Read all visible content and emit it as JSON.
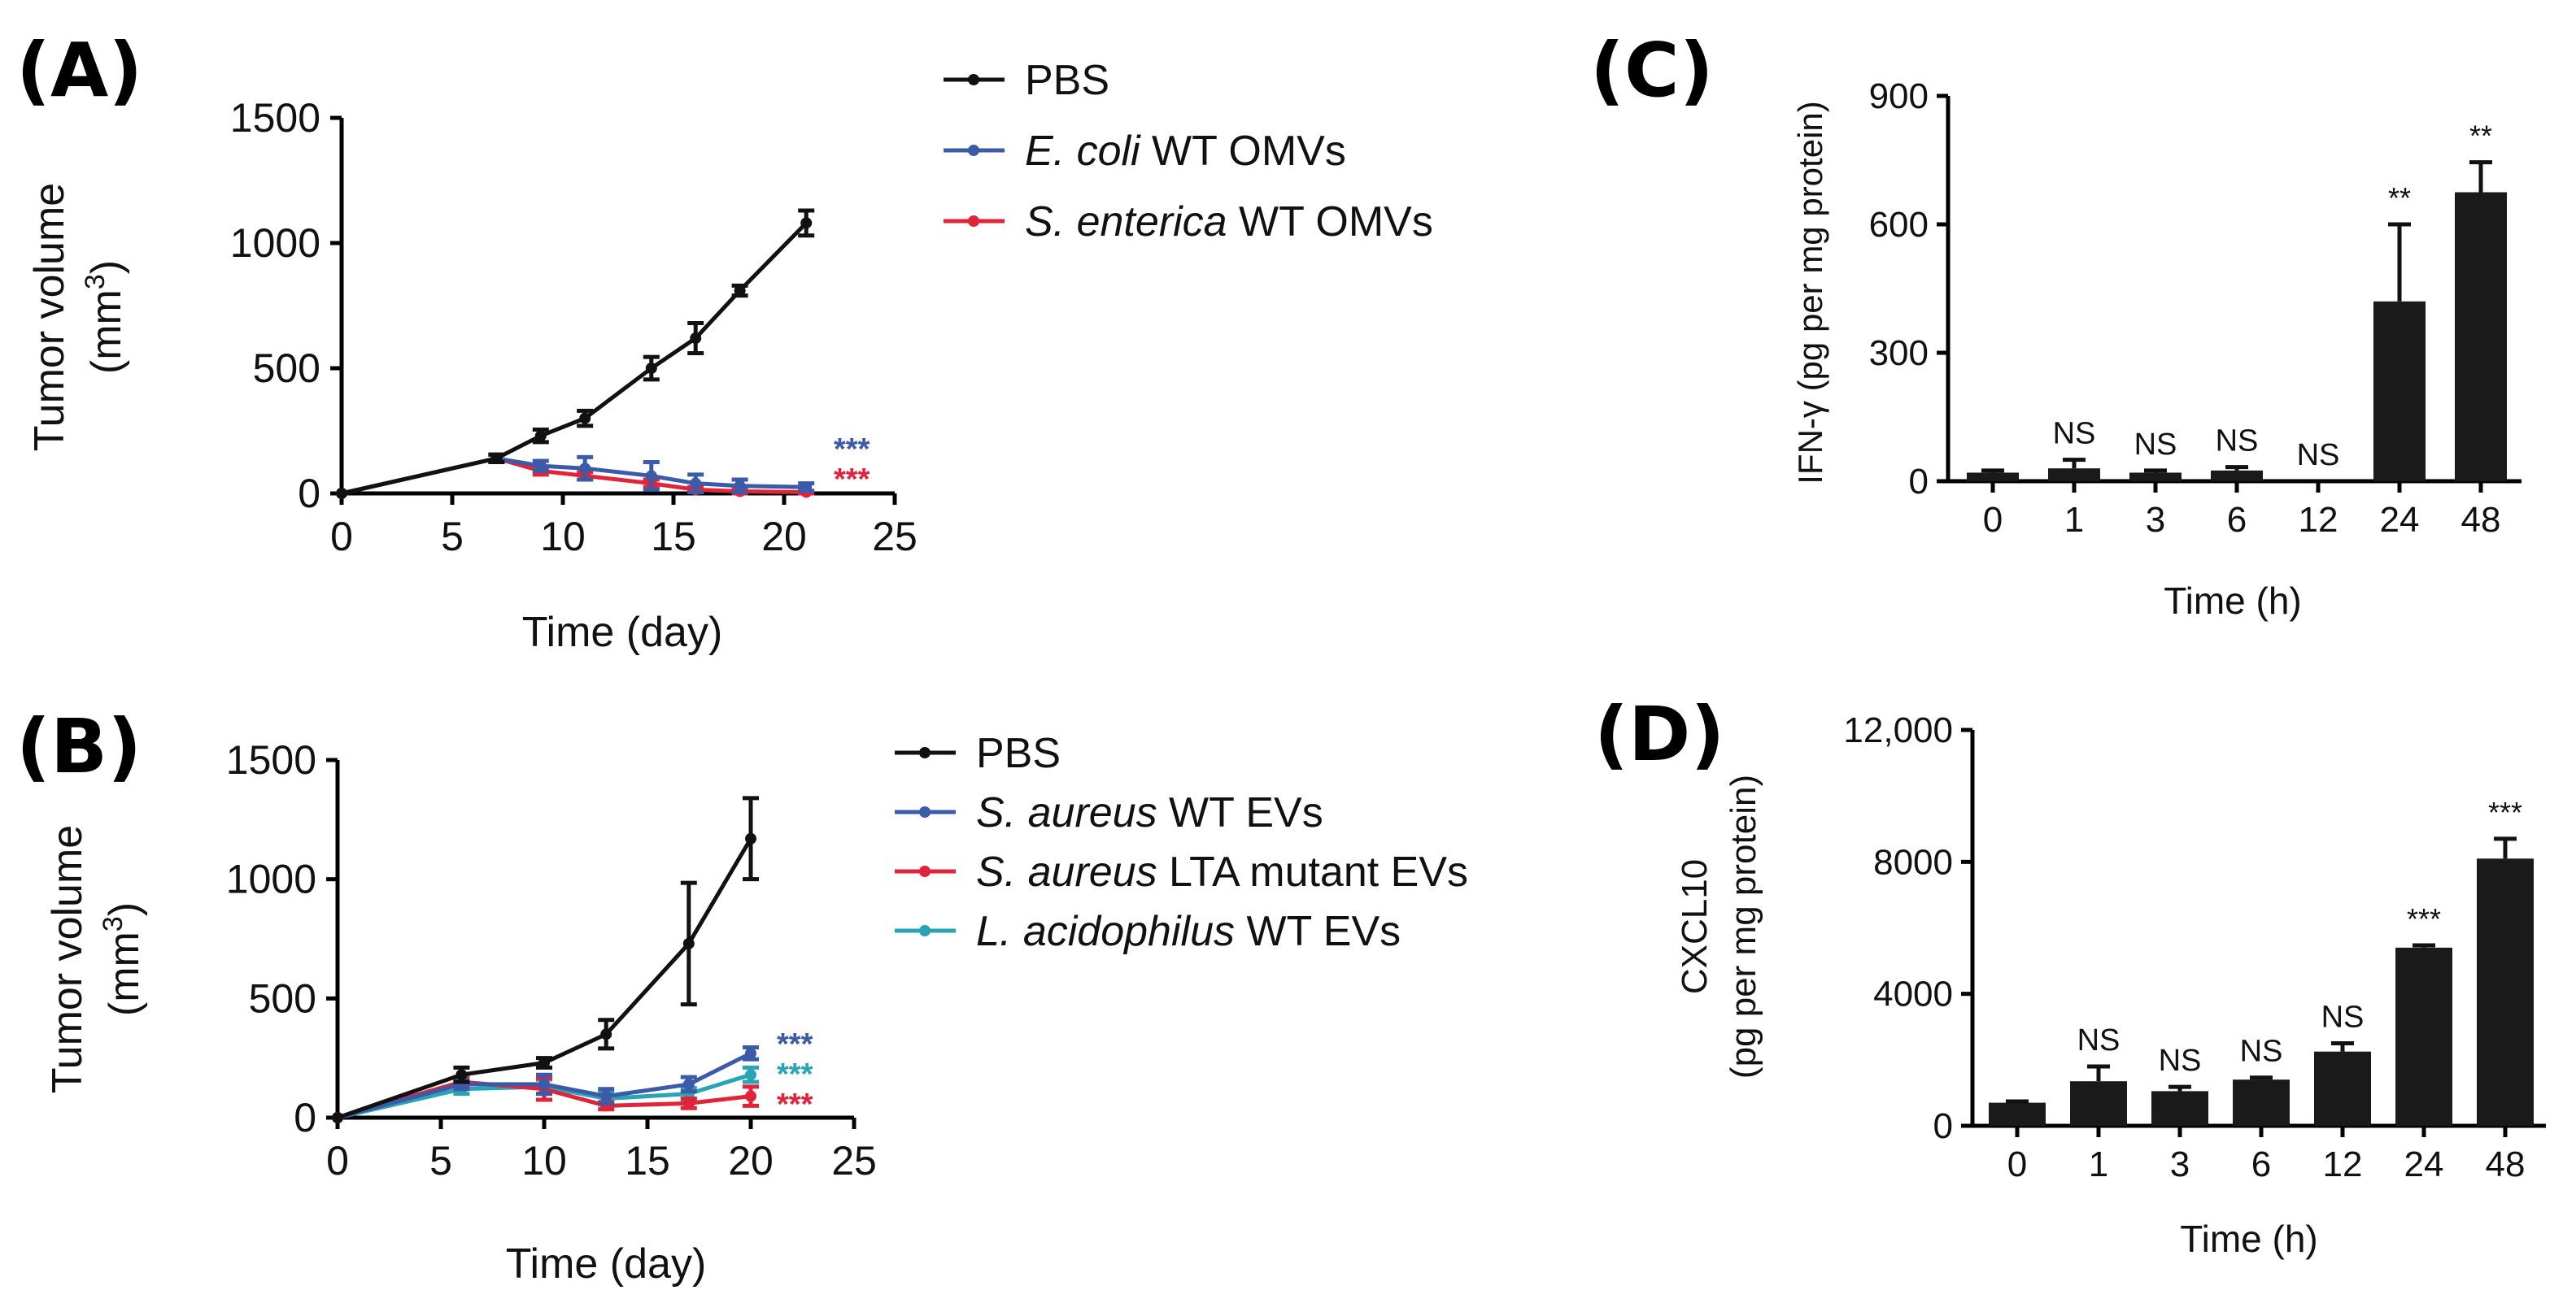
{
  "colors": {
    "black": "#111111",
    "blue": "#3b5aa8",
    "red": "#e0243a",
    "teal": "#2aa3b5"
  },
  "chart_data": [
    {
      "id": "A",
      "panel_label": "(A)",
      "type": "line",
      "xlabel": "Time (day)",
      "ylabel_line1": "Tumor volume",
      "ylabel_line2": "(mm",
      "ylabel_sup": "3",
      "ylabel_close": ")",
      "xlim": [
        0,
        25
      ],
      "ylim": [
        0,
        1500
      ],
      "xticks": [
        0,
        5,
        10,
        15,
        20,
        25
      ],
      "yticks": [
        0,
        500,
        1000,
        1500
      ],
      "series": [
        {
          "name": "PBS",
          "name_italic": "",
          "name_rest": "PBS",
          "color": "#111111",
          "x": [
            0,
            7,
            9,
            11,
            14,
            16,
            18,
            21
          ],
          "y": [
            0,
            140,
            230,
            300,
            500,
            620,
            810,
            1080
          ],
          "err": [
            0,
            15,
            25,
            30,
            45,
            60,
            20,
            50
          ]
        },
        {
          "name": "E. coli WT OMVs",
          "name_italic": "E. coli",
          "name_rest": " WT OMVs",
          "color": "#3b5aa8",
          "x": [
            0,
            7,
            9,
            11,
            14,
            16,
            18,
            21
          ],
          "y": [
            0,
            140,
            110,
            100,
            70,
            40,
            30,
            25
          ],
          "err": [
            0,
            15,
            20,
            45,
            55,
            35,
            25,
            15
          ]
        },
        {
          "name": "S. enterica WT OMVs",
          "name_italic": "S. enterica",
          "name_rest": " WT OMVs",
          "color": "#e0243a",
          "x": [
            0,
            7,
            9,
            11,
            14,
            16,
            18,
            21
          ],
          "y": [
            0,
            140,
            90,
            70,
            40,
            15,
            8,
            5
          ],
          "err": [
            0,
            15,
            15,
            15,
            15,
            10,
            8,
            5
          ]
        }
      ],
      "significance": [
        {
          "text": "***",
          "color": "#3b5aa8"
        },
        {
          "text": "***",
          "color": "#e0243a"
        }
      ]
    },
    {
      "id": "B",
      "panel_label": "(B)",
      "type": "line",
      "xlabel": "Time (day)",
      "ylabel_line1": "Tumor volume",
      "ylabel_line2": "(mm",
      "ylabel_sup": "3",
      "ylabel_close": ")",
      "xlim": [
        0,
        25
      ],
      "ylim": [
        0,
        1500
      ],
      "xticks": [
        0,
        5,
        10,
        15,
        20,
        25
      ],
      "yticks": [
        0,
        500,
        1000,
        1500
      ],
      "series": [
        {
          "name": "PBS",
          "name_italic": "",
          "name_rest": "PBS",
          "color": "#111111",
          "x": [
            0,
            6,
            10,
            13,
            17,
            20
          ],
          "y": [
            0,
            180,
            230,
            350,
            730,
            1170
          ],
          "err": [
            0,
            30,
            20,
            60,
            255,
            170
          ]
        },
        {
          "name": "S. aureus WT EVs",
          "name_italic": "S. aureus",
          "name_rest": " WT EVs",
          "color": "#3b5aa8",
          "x": [
            0,
            6,
            10,
            13,
            17,
            20
          ],
          "y": [
            0,
            140,
            140,
            90,
            140,
            270
          ],
          "err": [
            0,
            20,
            40,
            30,
            30,
            25
          ]
        },
        {
          "name": "S. aureus LTA mutant EVs",
          "name_italic": "S. aureus",
          "name_rest": " LTA mutant EVs",
          "color": "#e0243a",
          "x": [
            0,
            6,
            10,
            13,
            17,
            20
          ],
          "y": [
            0,
            150,
            120,
            50,
            60,
            90
          ],
          "err": [
            0,
            20,
            45,
            15,
            20,
            40
          ]
        },
        {
          "name": "L. acidophilus WT EVs",
          "name_italic": "L. acidophilus",
          "name_rest": " WT EVs",
          "color": "#2aa3b5",
          "x": [
            0,
            6,
            10,
            13,
            17,
            20
          ],
          "y": [
            0,
            120,
            130,
            80,
            100,
            180
          ],
          "err": [
            0,
            20,
            30,
            25,
            25,
            30
          ]
        }
      ],
      "significance": [
        {
          "text": "***",
          "color": "#3b5aa8"
        },
        {
          "text": "***",
          "color": "#2aa3b5"
        },
        {
          "text": "***",
          "color": "#e0243a"
        }
      ]
    },
    {
      "id": "C",
      "panel_label": "(C)",
      "type": "bar",
      "xlabel": "Time (h)",
      "ylabel": "IFN-γ (pg per mg protein)",
      "ylim": [
        0,
        900
      ],
      "yticks": [
        0,
        300,
        600,
        900
      ],
      "categories": [
        "0",
        "1",
        "3",
        "6",
        "12",
        "24",
        "48"
      ],
      "values": [
        20,
        30,
        20,
        25,
        0,
        420,
        675
      ],
      "err": [
        5,
        20,
        5,
        8,
        0,
        180,
        70
      ],
      "annotations": [
        "",
        "NS",
        "NS",
        "NS",
        "NS",
        "**",
        "**"
      ]
    },
    {
      "id": "D",
      "panel_label": "(D)",
      "type": "bar",
      "xlabel": "Time (h)",
      "ylabel_line1": "CXCL10",
      "ylabel_line2": "(pg per mg protein)",
      "ylim": [
        0,
        12000
      ],
      "yticks": [
        0,
        4000,
        8000,
        12000
      ],
      "ytick_labels": [
        "0",
        "4000",
        "8000",
        "12,000"
      ],
      "categories": [
        "0",
        "1",
        "3",
        "6",
        "12",
        "24",
        "48"
      ],
      "values": [
        700,
        1350,
        1050,
        1400,
        2250,
        5400,
        8100
      ],
      "err": [
        40,
        450,
        130,
        60,
        250,
        70,
        600
      ],
      "annotations": [
        "",
        "NS",
        "NS",
        "NS",
        "NS",
        "***",
        "***"
      ]
    }
  ]
}
